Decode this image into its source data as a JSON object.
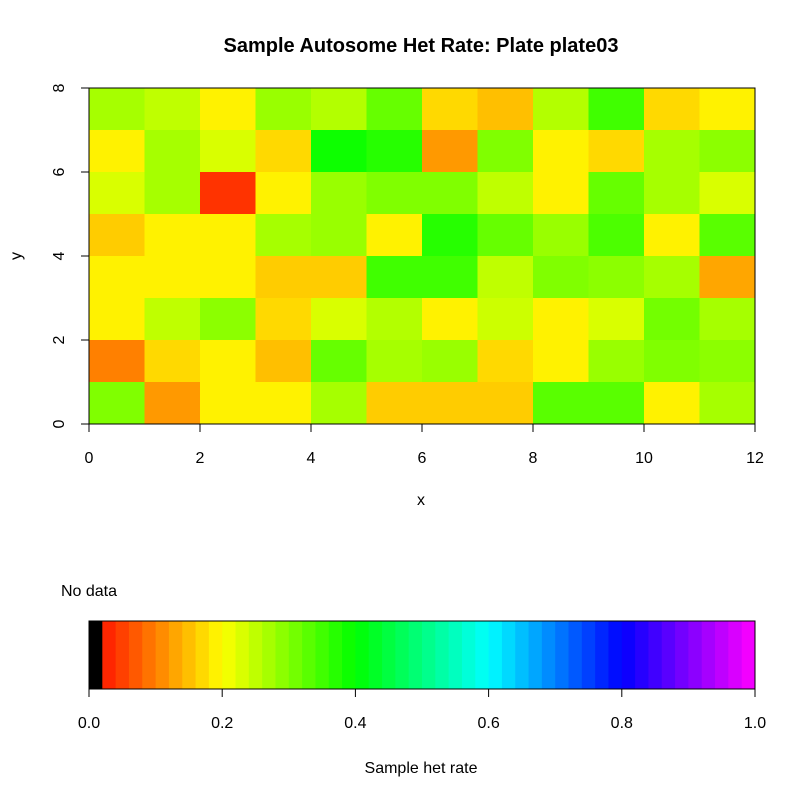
{
  "chart_data": [
    {
      "type": "heatmap",
      "title": "Sample Autosome Het Rate:  Plate plate03",
      "xlabel": "x",
      "ylabel": "y",
      "xlim": [
        0,
        12
      ],
      "ylim": [
        0,
        8
      ],
      "x_ticks": [
        "0",
        "2",
        "4",
        "6",
        "8",
        "10",
        "12"
      ],
      "y_ticks": [
        "0",
        "2",
        "4",
        "6",
        "8"
      ],
      "value_range": [
        0,
        1
      ],
      "rows_top_to_bottom": [
        [
          0.27,
          0.25,
          0.19,
          0.28,
          0.26,
          0.32,
          0.17,
          0.15,
          0.26,
          0.35,
          0.17,
          0.19
        ],
        [
          0.19,
          0.27,
          0.23,
          0.17,
          0.39,
          0.37,
          0.12,
          0.3,
          0.19,
          0.17,
          0.27,
          0.29
        ],
        [
          0.23,
          0.27,
          0.04,
          0.19,
          0.28,
          0.3,
          0.3,
          0.25,
          0.19,
          0.32,
          0.27,
          0.23
        ],
        [
          0.16,
          0.19,
          0.19,
          0.27,
          0.28,
          0.19,
          0.37,
          0.32,
          0.28,
          0.34,
          0.19,
          0.33
        ],
        [
          0.19,
          0.19,
          0.19,
          0.16,
          0.16,
          0.35,
          0.35,
          0.25,
          0.3,
          0.29,
          0.27,
          0.13
        ],
        [
          0.19,
          0.25,
          0.29,
          0.17,
          0.23,
          0.26,
          0.19,
          0.24,
          0.19,
          0.23,
          0.31,
          0.27
        ],
        [
          0.1,
          0.17,
          0.19,
          0.15,
          0.32,
          0.27,
          0.28,
          0.17,
          0.19,
          0.28,
          0.3,
          0.29
        ],
        [
          0.3,
          0.12,
          0.19,
          0.19,
          0.27,
          0.16,
          0.16,
          0.16,
          0.33,
          0.33,
          0.19,
          0.27
        ]
      ]
    },
    {
      "type": "heatmap",
      "title": "No data",
      "xlabel": "Sample het rate",
      "xlim": [
        0,
        1
      ],
      "x_ticks": [
        "0.0",
        "0.2",
        "0.4",
        "0.6",
        "0.8",
        "1.0"
      ],
      "bins": 50,
      "no_data_color": "#000000"
    }
  ]
}
